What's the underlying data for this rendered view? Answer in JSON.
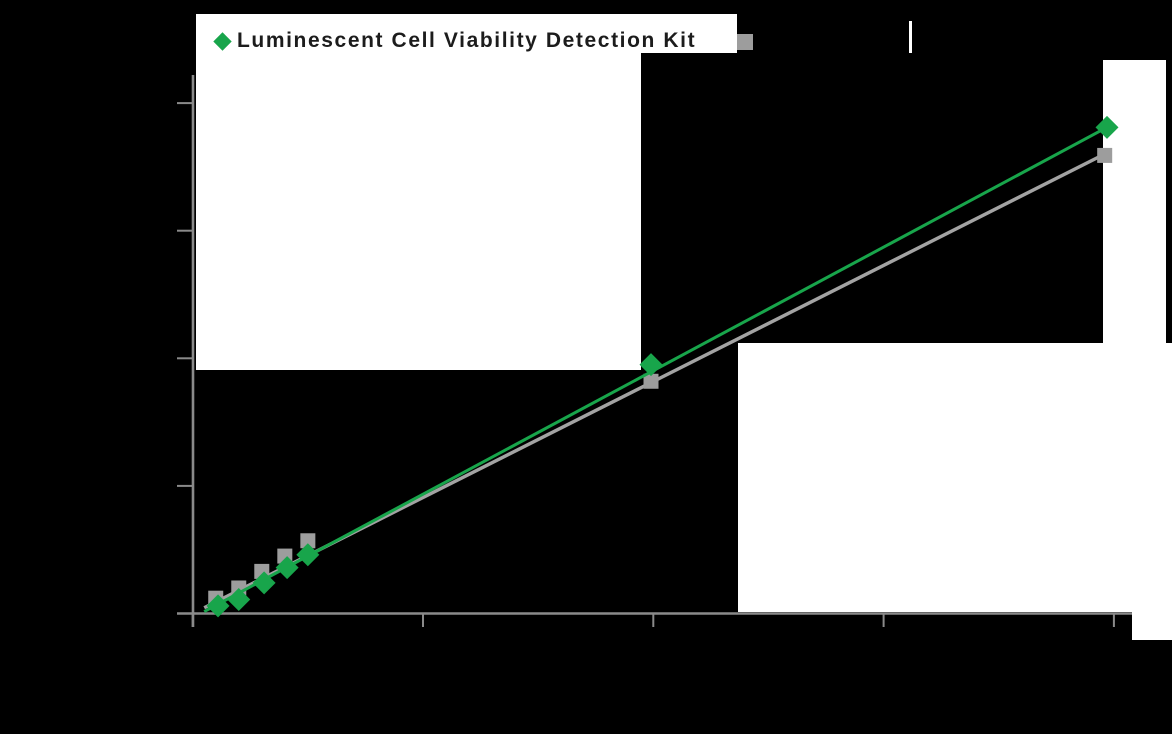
{
  "page": {
    "background": "#000000",
    "note": "chart image composited on black; white rectangular backdrop patches remain"
  },
  "colors": {
    "axis": "#8a8a8a",
    "series_green": "#18a54b",
    "series_gray": "#9d9d9d",
    "gray_line": "#a3a3a3",
    "backdrop": "#ffffff",
    "legend_text": "#1c1c1c"
  },
  "legend": {
    "items": [
      {
        "label": "Luminescent Cell Viability Detection Kit",
        "marker": "diamond",
        "color": "#18a54b"
      },
      {
        "label": "",
        "marker": "square",
        "color": "#9d9d9d",
        "note": "label text rendered black on black background (not visible); single white glyph artifact remains"
      }
    ]
  },
  "chart_data": {
    "type": "scatter",
    "title": "",
    "xlabel": "",
    "ylabel": "",
    "axis_note": "axis tick labels and axis titles are rendered black-on-black and are not visible; point values below are estimated in axis-tick units (one unit = one tick interval)",
    "x_ticks": [
      0,
      1,
      2,
      3,
      4
    ],
    "y_ticks": [
      0,
      1,
      2,
      3,
      4
    ],
    "xlim": [
      0,
      4.15
    ],
    "ylim": [
      0,
      4.25
    ],
    "grid": false,
    "legend_position": "top",
    "series": [
      {
        "name": "Luminescent Cell Viability Detection Kit",
        "marker": "diamond",
        "color": "#18a54b",
        "line_color": "#18a54b",
        "points": [
          [
            0.11,
            0.06
          ],
          [
            0.2,
            0.11
          ],
          [
            0.31,
            0.24
          ],
          [
            0.41,
            0.36
          ],
          [
            0.5,
            0.46
          ],
          [
            1.99,
            1.95
          ],
          [
            3.97,
            3.81
          ]
        ],
        "trendline": [
          [
            0.05,
            0.015
          ],
          [
            3.98,
            3.82
          ]
        ]
      },
      {
        "name": "",
        "marker": "square",
        "color": "#9d9d9d",
        "line_color": "#a3a3a3",
        "points": [
          [
            0.1,
            0.12
          ],
          [
            0.2,
            0.2
          ],
          [
            0.3,
            0.33
          ],
          [
            0.4,
            0.45
          ],
          [
            0.5,
            0.57
          ],
          [
            1.99,
            1.82
          ],
          [
            3.96,
            3.59
          ]
        ],
        "trendline": [
          [
            0.05,
            0.045
          ],
          [
            3.97,
            3.61
          ]
        ]
      }
    ]
  }
}
